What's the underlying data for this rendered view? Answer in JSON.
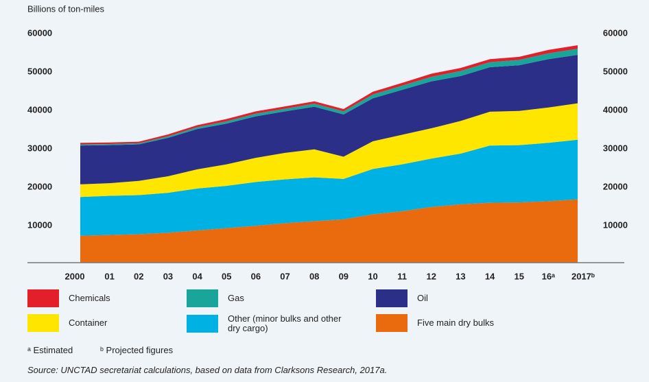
{
  "chart_data": {
    "type": "stacked-area",
    "y_label": "Billions of ton-miles",
    "categories": [
      "2000",
      "01",
      "02",
      "03",
      "04",
      "05",
      "06",
      "07",
      "08",
      "09",
      "10",
      "11",
      "12",
      "13",
      "14",
      "15",
      "16ᵃ",
      "2017ᵇ"
    ],
    "series": [
      {
        "name": "Five main dry bulks",
        "color": "#ea6a0e",
        "values": [
          7000,
          7200,
          7400,
          7800,
          8400,
          9000,
          9600,
          10300,
          10800,
          11300,
          12600,
          13400,
          14500,
          15200,
          15600,
          15700,
          16000,
          16500
        ]
      },
      {
        "name": "Other (minor bulks and other dry cargo)",
        "color": "#00b2e3",
        "values": [
          10100,
          10200,
          10200,
          10400,
          10900,
          11000,
          11400,
          11400,
          11400,
          10500,
          11800,
          12200,
          12600,
          13200,
          14900,
          14900,
          15200,
          15500
        ]
      },
      {
        "name": "Container",
        "color": "#ffe600",
        "values": [
          3300,
          3300,
          3700,
          4300,
          5000,
          5600,
          6300,
          6900,
          7300,
          5800,
          7200,
          7700,
          7900,
          8500,
          8800,
          8900,
          9200,
          9500
        ]
      },
      {
        "name": "Oil",
        "color": "#2b2f87",
        "values": [
          10100,
          9900,
          9500,
          10000,
          10500,
          10600,
          10800,
          10800,
          11100,
          11000,
          11200,
          11700,
          12200,
          11700,
          11600,
          11900,
          12600,
          12600
        ]
      },
      {
        "name": "Gas",
        "color": "#1aa59a",
        "values": [
          300,
          300,
          300,
          400,
          500,
          600,
          700,
          700,
          800,
          800,
          1000,
          1100,
          1200,
          1300,
          1300,
          1400,
          1500,
          1600
        ]
      },
      {
        "name": "Chemicals",
        "color": "#e3202a",
        "values": [
          400,
          400,
          400,
          500,
          500,
          600,
          600,
          600,
          600,
          600,
          700,
          700,
          800,
          800,
          800,
          800,
          900,
          900
        ]
      }
    ],
    "ylim": [
      0,
      60000
    ],
    "yticks": [
      10000,
      20000,
      30000,
      40000,
      50000,
      60000
    ],
    "grid": false,
    "footnotes": [
      "ᵃ Estimated",
      "ᵇ Projected figures"
    ],
    "source": "Source: UNCTAD secretariat calculations, based on data from Clarksons Research, 2017a."
  }
}
